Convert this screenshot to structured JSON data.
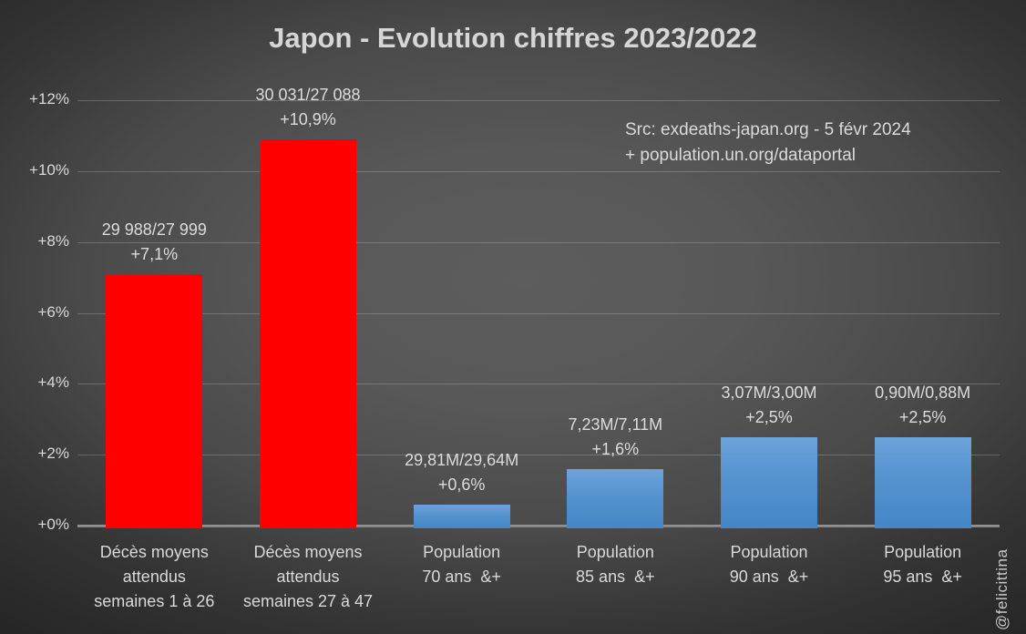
{
  "title": "Japon - Evolution chiffres 2023/2022",
  "source_note": {
    "line1": "Src: exdeaths-japan.org - 5 févr 2024",
    "line2": "+ population.un.org/dataportal"
  },
  "watermark": "@felicittina",
  "colors": {
    "red_bar": "#fe0000",
    "blue_bar_top": "#6ca3dc",
    "blue_bar_bottom": "#4486c6",
    "text": "#d9d9d9",
    "background_center": "#5d5d5d",
    "background_edge": "#262626"
  },
  "chart_data": {
    "type": "bar",
    "title": "Japon - Evolution chiffres 2023/2022",
    "xlabel": "",
    "ylabel": "",
    "y_axis": {
      "min": 0,
      "max": 12,
      "tick_step": 2,
      "unit": "%",
      "ticks": [
        "+0%",
        "+2%",
        "+4%",
        "+6%",
        "+8%",
        "+10%",
        "+12%"
      ]
    },
    "grid": "horizontal",
    "legend": "none",
    "bars": [
      {
        "category": "Décès moyens attendus semaines 1 à 26",
        "category_lines": [
          "Décès moyens",
          "attendus",
          "semaines 1 à 26"
        ],
        "value_label": "29 988/27 999",
        "pct_label": "+7,1%",
        "value_pct": 7.1,
        "color": "red"
      },
      {
        "category": "Décès moyens attendus semaines 27 à 47",
        "category_lines": [
          "Décès moyens",
          "attendus",
          "semaines 27 à 47"
        ],
        "value_label": "30 031/27 088",
        "pct_label": "+10,9%",
        "value_pct": 10.9,
        "color": "red"
      },
      {
        "category": "Population 70 ans &+",
        "category_lines": [
          "Population",
          "70 ans  &+"
        ],
        "value_label": "29,81M/29,64M",
        "pct_label": "+0,6%",
        "value_pct": 0.6,
        "color": "blue"
      },
      {
        "category": "Population 85 ans &+",
        "category_lines": [
          "Population",
          "85 ans  &+"
        ],
        "value_label": "7,23M/7,11M",
        "pct_label": "+1,6%",
        "value_pct": 1.6,
        "color": "blue"
      },
      {
        "category": "Population 90 ans &+",
        "category_lines": [
          "Population",
          "90 ans  &+"
        ],
        "value_label": "3,07M/3,00M",
        "pct_label": "+2,5%",
        "value_pct": 2.5,
        "color": "blue"
      },
      {
        "category": "Population 95 ans &+",
        "category_lines": [
          "Population",
          "95 ans  &+"
        ],
        "value_label": "0,90M/0,88M",
        "pct_label": "+2,5%",
        "value_pct": 2.5,
        "color": "blue"
      }
    ]
  }
}
